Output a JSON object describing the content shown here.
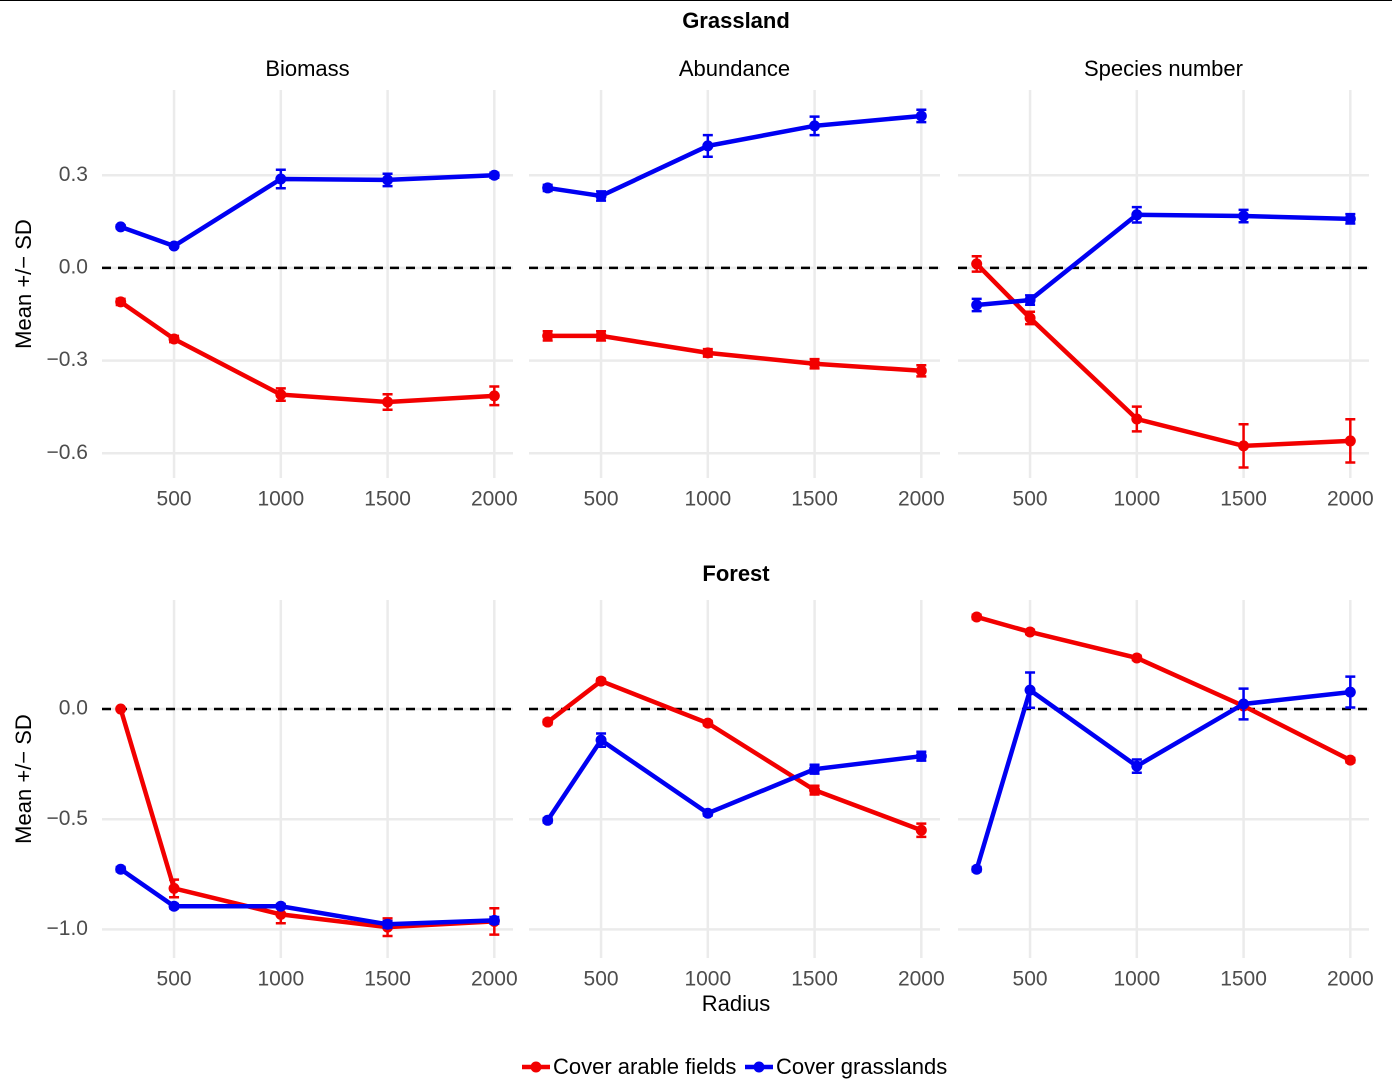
{
  "chart_data": [
    {
      "type": "line",
      "row_title": "Grassland",
      "title": "Biomass",
      "ylabel": "Mean +/− SD",
      "x": [
        250,
        500,
        1000,
        1500,
        2000
      ],
      "xlim": [
        162.5,
        2087.5
      ],
      "xticks": [
        500,
        1000,
        1500,
        2000
      ],
      "ylim": [
        -0.68,
        0.576
      ],
      "yticks": [
        {
          "value": -0.6,
          "label": "−0.6"
        },
        {
          "value": -0.3,
          "label": "−0.3"
        },
        {
          "value": 0,
          "label": "0.0"
        },
        {
          "value": 0.3,
          "label": "0.3"
        }
      ],
      "hline": 0,
      "grid": true,
      "series": [
        {
          "name": "Cover arable fields",
          "color": "#f20000",
          "values": [
            -0.11,
            -0.23,
            -0.41,
            -0.434,
            -0.414
          ],
          "errors": [
            0.01,
            0.01,
            0.02,
            0.025,
            0.03
          ]
        },
        {
          "name": "Cover grasslands",
          "color": "#0000f2",
          "values": [
            0.133,
            0.071,
            0.288,
            0.285,
            0.3
          ],
          "errors": [
            0.005,
            0.005,
            0.03,
            0.02,
            0.008
          ]
        }
      ]
    },
    {
      "type": "line",
      "title": "Abundance",
      "x": [
        250,
        500,
        1000,
        1500,
        2000
      ],
      "xlim": [
        162.5,
        2087.5
      ],
      "xticks": [
        500,
        1000,
        1500,
        2000
      ],
      "ylim": [
        -0.68,
        0.576
      ],
      "hline": 0,
      "grid": true,
      "series": [
        {
          "name": "Cover arable fields",
          "color": "#f20000",
          "values": [
            -0.22,
            -0.22,
            -0.275,
            -0.31,
            -0.333
          ],
          "errors": [
            0.015,
            0.015,
            0.012,
            0.015,
            0.018
          ]
        },
        {
          "name": "Cover grasslands",
          "color": "#0000f2",
          "values": [
            0.259,
            0.233,
            0.395,
            0.46,
            0.492
          ],
          "errors": [
            0.01,
            0.015,
            0.035,
            0.03,
            0.02
          ]
        }
      ]
    },
    {
      "type": "line",
      "title": "Species number",
      "x": [
        250,
        500,
        1000,
        1500,
        2000
      ],
      "xlim": [
        162.5,
        2087.5
      ],
      "xticks": [
        500,
        1000,
        1500,
        2000
      ],
      "ylim": [
        -0.68,
        0.576
      ],
      "hline": 0,
      "grid": true,
      "series": [
        {
          "name": "Cover arable fields",
          "color": "#f20000",
          "values": [
            0.013,
            -0.162,
            -0.489,
            -0.576,
            -0.56
          ],
          "errors": [
            0.025,
            0.02,
            0.04,
            0.07,
            0.07
          ]
        },
        {
          "name": "Cover grasslands",
          "color": "#0000f2",
          "values": [
            -0.12,
            -0.104,
            0.172,
            0.168,
            0.159
          ],
          "errors": [
            0.02,
            0.015,
            0.025,
            0.02,
            0.015
          ]
        }
      ]
    },
    {
      "type": "line",
      "row_title": "Forest",
      "ylabel": "Mean +/− SD",
      "x": [
        250,
        500,
        1000,
        1500,
        2000
      ],
      "xlim": [
        162.5,
        2087.5
      ],
      "xticks": [
        500,
        1000,
        1500,
        2000
      ],
      "ylim": [
        -1.13,
        0.495
      ],
      "yticks": [
        {
          "value": -1,
          "label": "−1.0"
        },
        {
          "value": -0.5,
          "label": "−0.5"
        },
        {
          "value": 0,
          "label": "0.0"
        }
      ],
      "hline": 0,
      "grid": true,
      "series": [
        {
          "name": "Cover arable fields",
          "color": "#f20000",
          "values": [
            0.0,
            -0.814,
            -0.932,
            -0.99,
            -0.964
          ],
          "errors": [
            0.005,
            0.04,
            0.04,
            0.04,
            0.06
          ]
        },
        {
          "name": "Cover grasslands",
          "color": "#0000f2",
          "values": [
            -0.727,
            -0.895,
            -0.895,
            -0.977,
            -0.959
          ],
          "errors": [
            0.01,
            0.01,
            0.01,
            0.015,
            0.015
          ]
        }
      ]
    },
    {
      "type": "line",
      "xlabel": "Radius",
      "x": [
        250,
        500,
        1000,
        1500,
        2000
      ],
      "xlim": [
        162.5,
        2087.5
      ],
      "xticks": [
        500,
        1000,
        1500,
        2000
      ],
      "ylim": [
        -1.13,
        0.495
      ],
      "hline": 0,
      "grid": true,
      "series": [
        {
          "name": "Cover arable fields",
          "color": "#f20000",
          "values": [
            -0.059,
            0.127,
            -0.064,
            -0.368,
            -0.55
          ],
          "errors": [
            0.01,
            0.01,
            0.01,
            0.02,
            0.03
          ]
        },
        {
          "name": "Cover grasslands",
          "color": "#0000f2",
          "values": [
            -0.505,
            -0.141,
            -0.473,
            -0.273,
            -0.214
          ],
          "errors": [
            0.01,
            0.03,
            0.01,
            0.02,
            0.02
          ]
        }
      ]
    },
    {
      "type": "line",
      "x": [
        250,
        500,
        1000,
        1500,
        2000
      ],
      "xlim": [
        162.5,
        2087.5
      ],
      "xticks": [
        500,
        1000,
        1500,
        2000
      ],
      "ylim": [
        -1.13,
        0.495
      ],
      "hline": 0,
      "grid": true,
      "series": [
        {
          "name": "Cover arable fields",
          "color": "#f20000",
          "values": [
            0.418,
            0.35,
            0.232,
            0.014,
            -0.232
          ],
          "errors": [
            0.01,
            0.01,
            0.01,
            0.01,
            0.01
          ]
        },
        {
          "name": "Cover grasslands",
          "color": "#0000f2",
          "values": [
            -0.727,
            0.086,
            -0.259,
            0.023,
            0.077
          ],
          "errors": [
            0.01,
            0.08,
            0.03,
            0.07,
            0.07
          ]
        }
      ]
    }
  ]
}
